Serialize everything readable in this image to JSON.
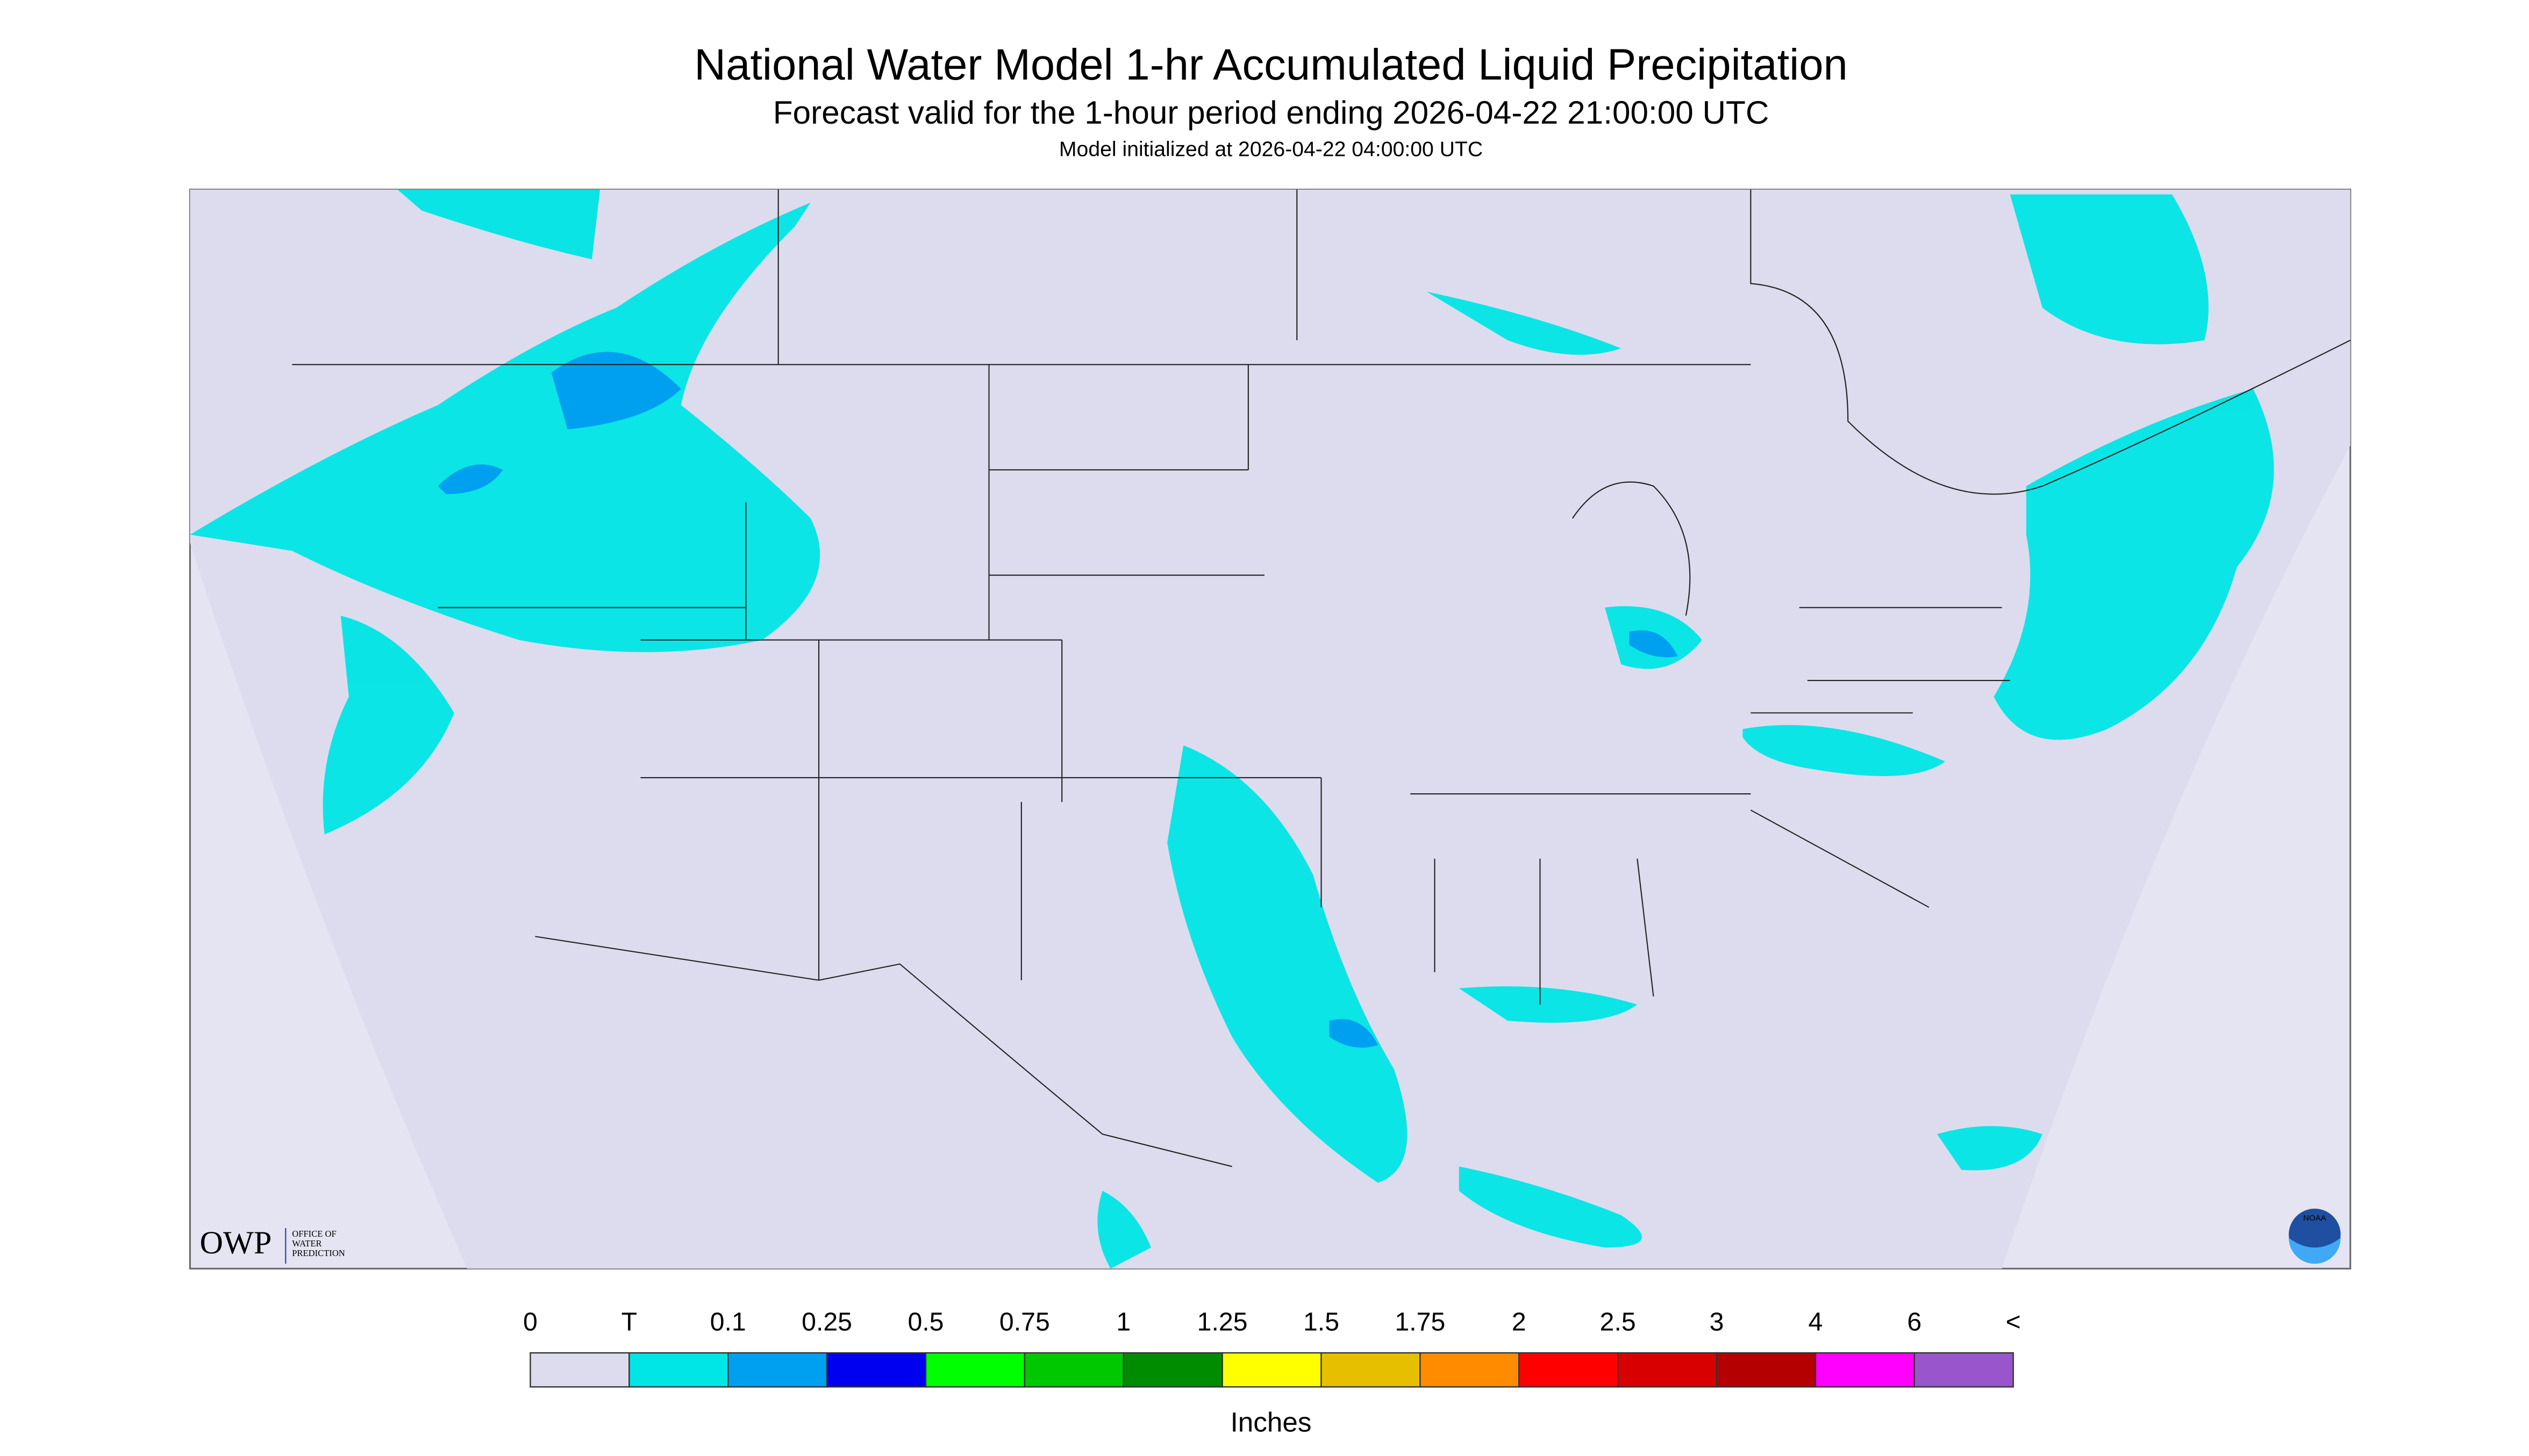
{
  "header": {
    "title": "National Water Model 1-hr Accumulated Liquid Precipitation",
    "subtitle": "Forecast valid for the 1-hour period ending 2026-04-22 21:00:00 UTC",
    "note": "Model initialized at 2026-04-22 04:00:00 UTC"
  },
  "logos": {
    "owp": "OWP",
    "owp_name": [
      "OFFICE OF",
      "WATER",
      "PREDICTION"
    ],
    "noaa": "NOAA"
  },
  "legend": {
    "labels": [
      "0",
      "T",
      "0.1",
      "0.25",
      "0.5",
      "0.75",
      "1",
      "1.25",
      "1.5",
      "1.75",
      "2",
      "2.5",
      "3",
      "4",
      "6",
      "<"
    ],
    "colors": [
      "#dcdcee",
      "#00e5e5",
      "#00a0f0",
      "#0000f0",
      "#00ff00",
      "#00c800",
      "#008c00",
      "#ffff00",
      "#e6c000",
      "#ff8c00",
      "#ff0000",
      "#d80000",
      "#b40000",
      "#ff00ff",
      "#9955cc"
    ],
    "unit": "Inches"
  }
}
